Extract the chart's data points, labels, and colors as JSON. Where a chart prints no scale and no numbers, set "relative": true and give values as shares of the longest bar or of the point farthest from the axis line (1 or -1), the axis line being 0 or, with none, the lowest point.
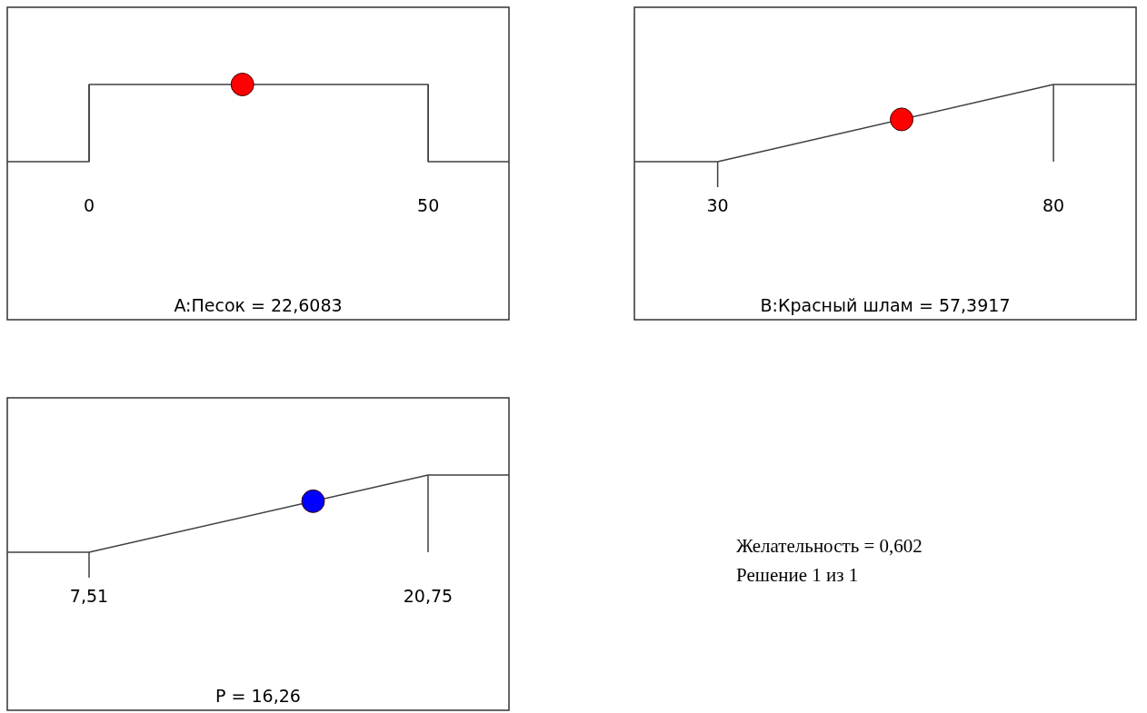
{
  "chart_data": [
    {
      "type": "line",
      "relative": true,
      "xlabel": "A:Песок = 22,6083",
      "xlim": [
        -12.06,
        61.9
      ],
      "xticks": [
        0,
        50
      ],
      "series": [
        {
          "type": "line",
          "color": "#404040",
          "x": [
            -12.06,
            0,
            0,
            50,
            50,
            61.9
          ],
          "values": [
            0,
            0,
            1,
            1,
            0,
            0
          ]
        },
        {
          "type": "scatter",
          "marker": "circle",
          "color": "#ff0000",
          "x": [
            22.6083
          ],
          "values": [
            1
          ]
        }
      ]
    },
    {
      "type": "line",
      "relative": true,
      "xlabel": "B:Красный шлам = 57,3917",
      "xlim": [
        17.6,
        92.3
      ],
      "xticks": [
        30,
        80
      ],
      "series": [
        {
          "type": "line",
          "color": "#404040",
          "x": [
            17.6,
            30,
            80,
            92.3
          ],
          "values": [
            0,
            0,
            1,
            1
          ]
        },
        {
          "type": "scatter",
          "marker": "circle",
          "color": "#ff0000",
          "x": [
            57.3917
          ],
          "values": [
            0.548
          ]
        }
      ]
    },
    {
      "type": "line",
      "relative": true,
      "xlabel": "P = 16,26",
      "xlim": [
        4.315,
        23.91
      ],
      "xticks": [
        {
          "value": 7.51,
          "label": "7,51"
        },
        {
          "value": 20.75,
          "label": "20,75"
        }
      ],
      "series": [
        {
          "type": "line",
          "color": "#404040",
          "x": [
            4.315,
            7.51,
            20.75,
            23.91
          ],
          "values": [
            0,
            0,
            1,
            1
          ]
        },
        {
          "type": "scatter",
          "marker": "circle",
          "color": "#0000ff",
          "x": [
            16.26
          ],
          "values": [
            0.661
          ]
        }
      ]
    },
    {
      "type": "other",
      "title": "Желательность = 0,602",
      "subtitle": "Решение 1 из 1"
    }
  ]
}
